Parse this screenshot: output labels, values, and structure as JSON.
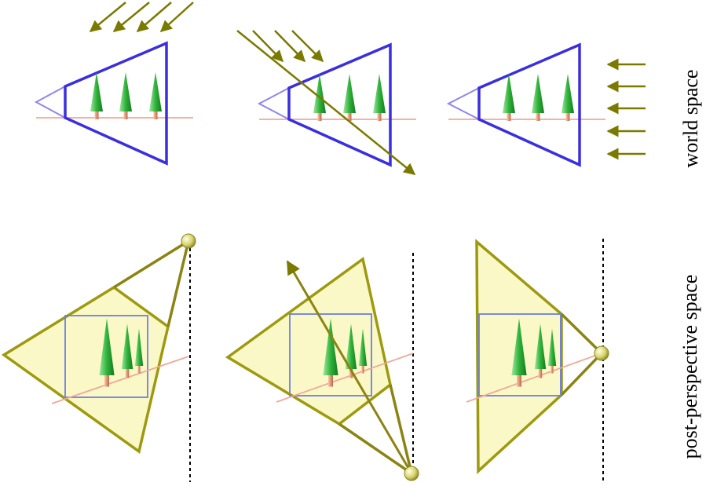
{
  "labels": {
    "world_space": "world space",
    "post_perspective_space": "post-perspective space"
  },
  "colors": {
    "frustum": "#3a2ee0",
    "frustum_apex": "#8f86ee",
    "ground": "#f0a898",
    "light": "#7a7a00",
    "shadow_fill": "#fbf8c8",
    "shadow_edge": "#9d9a10",
    "box": "#6a7fe0",
    "tree_leaf": "#3fba3f",
    "tree_trunk": "#d88868"
  },
  "panels": {
    "world": [
      {
        "name": "world-panel-directional-from-right-top",
        "light": "diagonal light rays entering from above"
      },
      {
        "name": "world-panel-directional-from-left-top",
        "light": "diagonal light rays crossing the frustum"
      },
      {
        "name": "world-panel-directional-from-right",
        "light": "horizontal light rays from the right"
      }
    ],
    "post": [
      {
        "name": "post-panel-point-light-top"
      },
      {
        "name": "post-panel-point-light-bottom"
      },
      {
        "name": "post-panel-point-light-right"
      }
    ]
  }
}
